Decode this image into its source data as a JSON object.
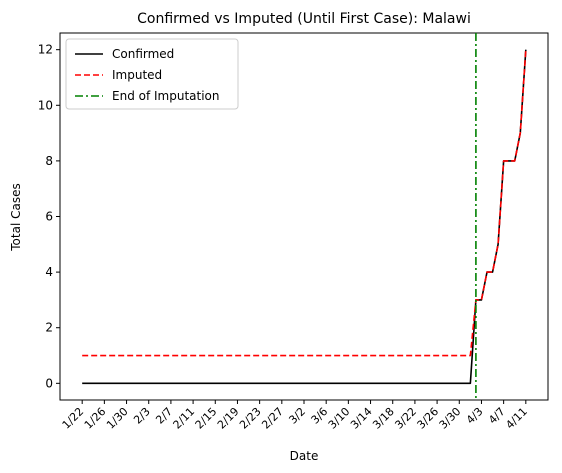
{
  "chart_data": {
    "type": "line",
    "title": "Confirmed vs Imputed (Until First Case): Malawi",
    "xlabel": "Date",
    "ylabel": "Total Cases",
    "x": [
      "1/22",
      "1/23",
      "1/24",
      "1/25",
      "1/26",
      "1/27",
      "1/28",
      "1/29",
      "1/30",
      "1/31",
      "2/1",
      "2/2",
      "2/3",
      "2/4",
      "2/5",
      "2/6",
      "2/7",
      "2/8",
      "2/9",
      "2/10",
      "2/11",
      "2/12",
      "2/13",
      "2/14",
      "2/15",
      "2/16",
      "2/17",
      "2/18",
      "2/19",
      "2/20",
      "2/21",
      "2/22",
      "2/23",
      "2/24",
      "2/25",
      "2/26",
      "2/27",
      "2/28",
      "2/29",
      "3/1",
      "3/2",
      "3/3",
      "3/4",
      "3/5",
      "3/6",
      "3/7",
      "3/8",
      "3/9",
      "3/10",
      "3/11",
      "3/12",
      "3/13",
      "3/14",
      "3/15",
      "3/16",
      "3/17",
      "3/18",
      "3/19",
      "3/20",
      "3/21",
      "3/22",
      "3/23",
      "3/24",
      "3/25",
      "3/26",
      "3/27",
      "3/28",
      "3/29",
      "3/30",
      "3/31",
      "4/1",
      "4/2",
      "4/3",
      "4/4",
      "4/5",
      "4/6",
      "4/7",
      "4/8",
      "4/9",
      "4/10",
      "4/11"
    ],
    "x_ticks": [
      "1/22",
      "1/26",
      "1/30",
      "2/3",
      "2/7",
      "2/11",
      "2/15",
      "2/19",
      "2/23",
      "2/27",
      "3/2",
      "3/6",
      "3/10",
      "3/14",
      "3/18",
      "3/22",
      "3/26",
      "3/30",
      "4/3",
      "4/7",
      "4/11"
    ],
    "y_ticks": [
      0,
      2,
      4,
      6,
      8,
      10,
      12
    ],
    "ylim": [
      -0.6,
      12.6
    ],
    "series": [
      {
        "name": "Confirmed",
        "color": "#000000",
        "style": "solid",
        "values": [
          0,
          0,
          0,
          0,
          0,
          0,
          0,
          0,
          0,
          0,
          0,
          0,
          0,
          0,
          0,
          0,
          0,
          0,
          0,
          0,
          0,
          0,
          0,
          0,
          0,
          0,
          0,
          0,
          0,
          0,
          0,
          0,
          0,
          0,
          0,
          0,
          0,
          0,
          0,
          0,
          0,
          0,
          0,
          0,
          0,
          0,
          0,
          0,
          0,
          0,
          0,
          0,
          0,
          0,
          0,
          0,
          0,
          0,
          0,
          0,
          0,
          0,
          0,
          0,
          0,
          0,
          0,
          0,
          0,
          0,
          0,
          3,
          3,
          4,
          4,
          5,
          8,
          8,
          8,
          9,
          12
        ]
      },
      {
        "name": "Imputed",
        "color": "#ff0000",
        "style": "dashed",
        "values": [
          1,
          1,
          1,
          1,
          1,
          1,
          1,
          1,
          1,
          1,
          1,
          1,
          1,
          1,
          1,
          1,
          1,
          1,
          1,
          1,
          1,
          1,
          1,
          1,
          1,
          1,
          1,
          1,
          1,
          1,
          1,
          1,
          1,
          1,
          1,
          1,
          1,
          1,
          1,
          1,
          1,
          1,
          1,
          1,
          1,
          1,
          1,
          1,
          1,
          1,
          1,
          1,
          1,
          1,
          1,
          1,
          1,
          1,
          1,
          1,
          1,
          1,
          1,
          1,
          1,
          1,
          1,
          1,
          1,
          1,
          1,
          3,
          3,
          4,
          4,
          5,
          8,
          8,
          8,
          9,
          12
        ]
      }
    ],
    "vline": {
      "name": "End of Imputation",
      "x": "4/2",
      "color": "#008000",
      "style": "dashdot"
    },
    "legend_position": "top-left",
    "grid": false
  }
}
